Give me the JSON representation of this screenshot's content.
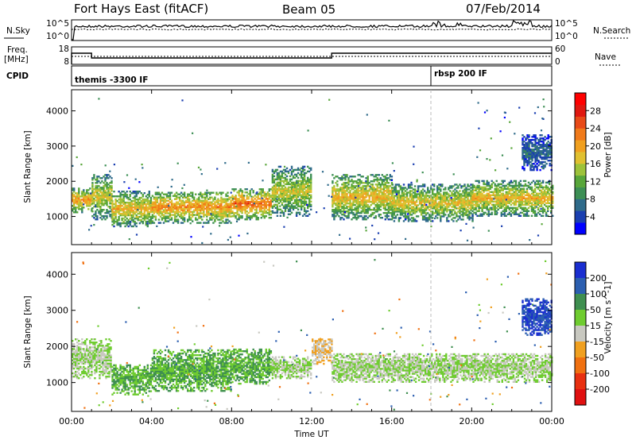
{
  "header": {
    "title": "Fort Hays East (fitACF)",
    "beam": "Beam 05",
    "date": "07/Feb/2014"
  },
  "status_panels": {
    "noise_left_label": "N.Sky",
    "noise_right_label": "N.Search",
    "noise_left_ticks": [
      "10^5",
      "10^0"
    ],
    "noise_right_ticks": [
      "10^5",
      "10^0"
    ],
    "freq_label_line1": "Freq.",
    "freq_label_line2": "[MHz]",
    "freq_ticks": [
      "18",
      "8"
    ],
    "nave_label": "Nave",
    "nave_ticks": [
      "60",
      "0"
    ],
    "cpid_label": "CPID",
    "cpid_segments": [
      {
        "label": "themis -3300 IF",
        "start_hour": 0
      },
      {
        "label": "rbsp 200 IF",
        "start_hour": 18
      }
    ]
  },
  "chart_data": [
    {
      "type": "heatmap",
      "panel": "power",
      "ylabel": "Slant Range [km]",
      "xlabel": "",
      "x_ticks": [
        "00:00",
        "04:00",
        "08:00",
        "12:00",
        "16:00",
        "20:00",
        "00:00"
      ],
      "x_range_hours": [
        0,
        24
      ],
      "y_ticks": [
        1000,
        2000,
        3000,
        4000
      ],
      "ylim": [
        200,
        4600
      ],
      "colorbar": {
        "label": "Power [dB]",
        "ticks": [
          4,
          8,
          12,
          16,
          20,
          24,
          28
        ],
        "range": [
          0,
          32
        ],
        "colors": [
          "#0000ff",
          "#1a3fb0",
          "#2f6b8a",
          "#3d8f55",
          "#58a63a",
          "#9dc23a",
          "#e0c030",
          "#f0a020",
          "#f07a1a",
          "#e84a18",
          "#e01810",
          "#ff0000"
        ]
      },
      "echo_bands": [
        {
          "t0": 0.0,
          "t1": 1.0,
          "r_lo": 1100,
          "r_hi": 1800,
          "power_db": 18
        },
        {
          "t0": 1.0,
          "t1": 2.0,
          "r_lo": 900,
          "r_hi": 2200,
          "power_db": 14
        },
        {
          "t0": 2.0,
          "t1": 4.0,
          "r_lo": 700,
          "r_hi": 1700,
          "power_db": 16
        },
        {
          "t0": 4.0,
          "t1": 8.0,
          "r_lo": 800,
          "r_hi": 1700,
          "power_db": 18
        },
        {
          "t0": 8.0,
          "t1": 10.0,
          "r_lo": 900,
          "r_hi": 1800,
          "power_db": 20
        },
        {
          "t0": 10.0,
          "t1": 12.0,
          "r_lo": 1000,
          "r_hi": 2400,
          "power_db": 14
        },
        {
          "t0": 13.0,
          "t1": 16.0,
          "r_lo": 900,
          "r_hi": 2200,
          "power_db": 16
        },
        {
          "t0": 16.0,
          "t1": 20.0,
          "r_lo": 850,
          "r_hi": 1900,
          "power_db": 15
        },
        {
          "t0": 20.0,
          "t1": 24.0,
          "r_lo": 1000,
          "r_hi": 2000,
          "power_db": 16
        },
        {
          "t0": 22.5,
          "t1": 24.0,
          "r_lo": 2300,
          "r_hi": 3300,
          "power_db": 6
        }
      ]
    },
    {
      "type": "heatmap",
      "panel": "velocity",
      "ylabel": "Slant Range [km]",
      "xlabel": "Time UT",
      "x_ticks": [
        "00:00",
        "04:00",
        "08:00",
        "12:00",
        "16:00",
        "20:00",
        "00:00"
      ],
      "x_range_hours": [
        0,
        24
      ],
      "y_ticks": [
        1000,
        2000,
        3000,
        4000
      ],
      "ylim": [
        200,
        4600
      ],
      "colorbar": {
        "label": "Velocity [m s^-1]",
        "ticks": [
          200,
          100,
          50,
          15,
          -15,
          -50,
          -100,
          -200
        ],
        "colors": [
          "#1a2ed0",
          "#2c5fb0",
          "#3f8f50",
          "#6fcc30",
          "#c8c8c0",
          "#f0a020",
          "#f07010",
          "#e83010",
          "#e01010"
        ]
      },
      "echo_bands": [
        {
          "t0": 0.0,
          "t1": 2.0,
          "r_lo": 1100,
          "r_hi": 2200,
          "velocity": 0
        },
        {
          "t0": 2.0,
          "t1": 4.0,
          "r_lo": 650,
          "r_hi": 1500,
          "velocity": 30
        },
        {
          "t0": 4.0,
          "t1": 8.0,
          "r_lo": 750,
          "r_hi": 1900,
          "velocity": 30
        },
        {
          "t0": 8.0,
          "t1": 10.0,
          "r_lo": 950,
          "r_hi": 1900,
          "velocity": 30
        },
        {
          "t0": 10.0,
          "t1": 12.0,
          "r_lo": 1100,
          "r_hi": 1700,
          "velocity": 0
        },
        {
          "t0": 12.0,
          "t1": 13.0,
          "r_lo": 1500,
          "r_hi": 2200,
          "velocity": -30
        },
        {
          "t0": 13.0,
          "t1": 24.0,
          "r_lo": 1000,
          "r_hi": 1800,
          "velocity": 0
        },
        {
          "t0": 22.5,
          "t1": 24.0,
          "r_lo": 2300,
          "r_hi": 3300,
          "velocity": 150
        }
      ]
    }
  ]
}
